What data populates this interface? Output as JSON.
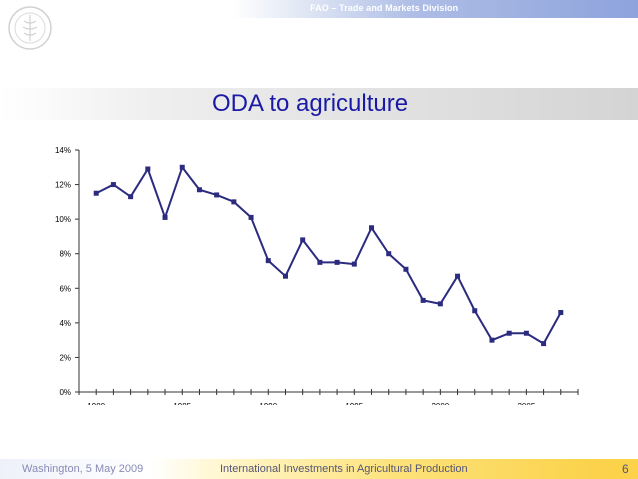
{
  "header": {
    "banner": "FAO – Trade and Markets Division"
  },
  "title": "ODA to agriculture",
  "footer": {
    "left": "Washington, 5 May 2009",
    "center": "International Investments in Agricultural Production",
    "page": "6"
  },
  "colors": {
    "series": "#2b2b7f",
    "title": "#1a1aa6"
  },
  "chart_data": {
    "type": "line",
    "title": "",
    "xlabel": "",
    "ylabel": "",
    "xlim": [
      1979,
      2008
    ],
    "ylim": [
      0,
      14
    ],
    "grid": false,
    "y_ticks": [
      "0%",
      "2%",
      "4%",
      "6%",
      "8%",
      "10%",
      "12%",
      "14%"
    ],
    "x_tick_labels": [
      "1980",
      "1985",
      "1990",
      "1995",
      "2000",
      "2005"
    ],
    "x": [
      1980,
      1981,
      1982,
      1983,
      1984,
      1985,
      1986,
      1987,
      1988,
      1989,
      1990,
      1991,
      1992,
      1993,
      1994,
      1995,
      1996,
      1997,
      1998,
      1999,
      2000,
      2001,
      2002,
      2003,
      2004,
      2005,
      2006,
      2007
    ],
    "series": [
      {
        "values": [
          11.5,
          12.0,
          11.3,
          12.9,
          10.1,
          13.0,
          11.7,
          11.4,
          11.0,
          10.1,
          7.6,
          6.7,
          8.8,
          7.5,
          7.5,
          7.4,
          9.5,
          8.0,
          7.1,
          5.3,
          5.1,
          6.7,
          4.7,
          3.0,
          3.4,
          3.4,
          2.8,
          4.6
        ]
      }
    ]
  }
}
